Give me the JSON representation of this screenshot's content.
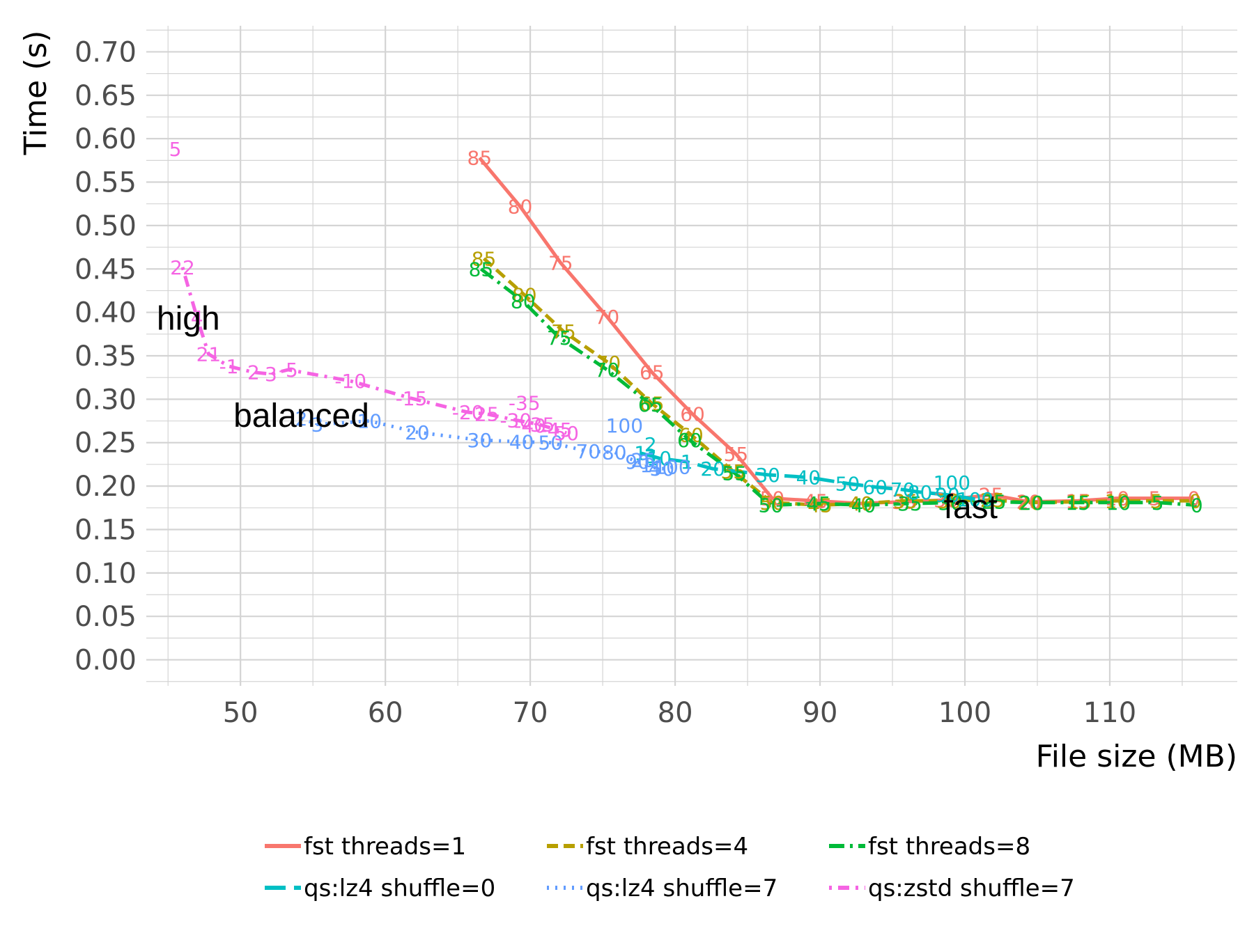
{
  "chart_data": {
    "type": "line",
    "title": "",
    "xlabel": "File size (MB)",
    "ylabel": "Time (s)",
    "xlim": [
      43.5,
      118.8
    ],
    "ylim": [
      -0.03,
      0.73
    ],
    "x_ticks": [
      50,
      60,
      70,
      80,
      90,
      100,
      110
    ],
    "x_tick_labels": [
      "50",
      "60",
      "70",
      "80",
      "90",
      "100",
      "110"
    ],
    "y_ticks": [
      0.0,
      0.05,
      0.1,
      0.15,
      0.2,
      0.25,
      0.3,
      0.35,
      0.4,
      0.45,
      0.5,
      0.55,
      0.6,
      0.65,
      0.7
    ],
    "y_tick_labels": [
      "0.00",
      "0.05",
      "0.10",
      "0.15",
      "0.20",
      "0.25",
      "0.30",
      "0.35",
      "0.40",
      "0.45",
      "0.50",
      "0.55",
      "0.60",
      "0.65",
      "0.70"
    ],
    "grid": true,
    "legend_position": "bottom",
    "series": [
      {
        "name": "fst threads=1",
        "color": "#F8766D",
        "dash": "solid",
        "points": [
          {
            "x": 66.5,
            "y": 0.578,
            "label": "85"
          },
          {
            "x": 69.3,
            "y": 0.522,
            "label": "80"
          },
          {
            "x": 72.1,
            "y": 0.457,
            "label": "75"
          },
          {
            "x": 75.3,
            "y": 0.395,
            "label": "70"
          },
          {
            "x": 78.4,
            "y": 0.331,
            "label": "65"
          },
          {
            "x": 81.2,
            "y": 0.283,
            "label": "60"
          },
          {
            "x": 84.2,
            "y": 0.237,
            "label": "55"
          },
          {
            "x": 86.7,
            "y": 0.186,
            "label": "50"
          },
          {
            "x": 89.7,
            "y": 0.183,
            "label": "45"
          },
          {
            "x": 92.8,
            "y": 0.18,
            "label": "40"
          },
          {
            "x": 95.8,
            "y": 0.182,
            "label": "35"
          },
          {
            "x": 98.7,
            "y": 0.184,
            "label": "30"
          },
          {
            "x": 101.8,
            "y": 0.19,
            "label": "25"
          },
          {
            "x": 104.4,
            "y": 0.182,
            "label": "20"
          },
          {
            "x": 107.8,
            "y": 0.183,
            "label": "15"
          },
          {
            "x": 110.5,
            "y": 0.186,
            "label": "10"
          },
          {
            "x": 113.1,
            "y": 0.186,
            "label": "5"
          },
          {
            "x": 115.8,
            "y": 0.186,
            "label": "0"
          }
        ]
      },
      {
        "name": "fst threads=4",
        "color": "#B79F00",
        "dash": "dashed",
        "points": [
          {
            "x": 66.8,
            "y": 0.462,
            "label": "85"
          },
          {
            "x": 69.6,
            "y": 0.42,
            "label": "80"
          },
          {
            "x": 72.3,
            "y": 0.378,
            "label": "75"
          },
          {
            "x": 75.4,
            "y": 0.342,
            "label": "70"
          },
          {
            "x": 78.4,
            "y": 0.295,
            "label": "65"
          },
          {
            "x": 81.1,
            "y": 0.259,
            "label": "60"
          },
          {
            "x": 84.0,
            "y": 0.217,
            "label": "55"
          },
          {
            "x": 86.7,
            "y": 0.181,
            "label": "50"
          },
          {
            "x": 90.0,
            "y": 0.178,
            "label": "45"
          },
          {
            "x": 92.8,
            "y": 0.18,
            "label": "40"
          },
          {
            "x": 95.9,
            "y": 0.183,
            "label": "35"
          },
          {
            "x": 98.9,
            "y": 0.183,
            "label": "30"
          },
          {
            "x": 101.9,
            "y": 0.184,
            "label": "25"
          },
          {
            "x": 104.5,
            "y": 0.181,
            "label": "20"
          },
          {
            "x": 107.9,
            "y": 0.182,
            "label": "15"
          },
          {
            "x": 110.5,
            "y": 0.183,
            "label": "10"
          },
          {
            "x": 113.2,
            "y": 0.183,
            "label": "5"
          },
          {
            "x": 115.9,
            "y": 0.183,
            "label": "0"
          }
        ]
      },
      {
        "name": "fst threads=8",
        "color": "#00BA38",
        "dash": "dashdot",
        "points": [
          {
            "x": 66.6,
            "y": 0.45,
            "label": "85"
          },
          {
            "x": 69.5,
            "y": 0.413,
            "label": "80"
          },
          {
            "x": 72.0,
            "y": 0.371,
            "label": "75"
          },
          {
            "x": 75.3,
            "y": 0.334,
            "label": "70"
          },
          {
            "x": 78.3,
            "y": 0.294,
            "label": "65"
          },
          {
            "x": 81.0,
            "y": 0.253,
            "label": "60"
          },
          {
            "x": 84.1,
            "y": 0.215,
            "label": "55"
          },
          {
            "x": 86.6,
            "y": 0.178,
            "label": "50"
          },
          {
            "x": 89.9,
            "y": 0.18,
            "label": "45"
          },
          {
            "x": 93.0,
            "y": 0.178,
            "label": "40"
          },
          {
            "x": 96.2,
            "y": 0.18,
            "label": "35"
          },
          {
            "x": 99.0,
            "y": 0.181,
            "label": "30"
          },
          {
            "x": 102.0,
            "y": 0.182,
            "label": "25"
          },
          {
            "x": 104.6,
            "y": 0.181,
            "label": "20"
          },
          {
            "x": 107.8,
            "y": 0.181,
            "label": "15"
          },
          {
            "x": 110.6,
            "y": 0.181,
            "label": "10"
          },
          {
            "x": 113.3,
            "y": 0.181,
            "label": "5"
          },
          {
            "x": 116.0,
            "y": 0.178,
            "label": "0"
          }
        ]
      },
      {
        "name": "qs:lz4 shuffle=0",
        "color": "#00BFC4",
        "dash": "longdash",
        "points": [
          {
            "x": 77.6,
            "y": 0.238,
            "label": "1"
          },
          {
            "x": 78.3,
            "y": 0.235,
            "label": "3"
          },
          {
            "x": 78.9,
            "y": 0.232,
            "label": "10"
          },
          {
            "x": 80.8,
            "y": 0.228,
            "label": "1"
          },
          {
            "x": 82.6,
            "y": 0.22,
            "label": "20"
          },
          {
            "x": 86.4,
            "y": 0.213,
            "label": "30"
          },
          {
            "x": 89.2,
            "y": 0.21,
            "label": "40"
          },
          {
            "x": 91.9,
            "y": 0.203,
            "label": "50"
          },
          {
            "x": 93.8,
            "y": 0.199,
            "label": "60"
          },
          {
            "x": 95.7,
            "y": 0.196,
            "label": "70"
          },
          {
            "x": 96.9,
            "y": 0.193,
            "label": "80"
          },
          {
            "x": 98.8,
            "y": 0.19,
            "label": "90"
          },
          {
            "x": 100.7,
            "y": 0.185,
            "label": "100"
          }
        ]
      },
      {
        "name": "qs:lz4 shuffle=7",
        "color": "#619CFF",
        "dash": "dotted",
        "points": [
          {
            "x": 54.2,
            "y": 0.278,
            "label": "2"
          },
          {
            "x": 55.3,
            "y": 0.271,
            "label": "3"
          },
          {
            "x": 58.9,
            "y": 0.275,
            "label": "10"
          },
          {
            "x": 62.2,
            "y": 0.262,
            "label": "20"
          },
          {
            "x": 66.5,
            "y": 0.253,
            "label": "30"
          },
          {
            "x": 69.4,
            "y": 0.251,
            "label": "40"
          },
          {
            "x": 71.4,
            "y": 0.25,
            "label": "50"
          },
          {
            "x": 74.0,
            "y": 0.24,
            "label": "70"
          },
          {
            "x": 75.8,
            "y": 0.239,
            "label": "80"
          },
          {
            "x": 77.4,
            "y": 0.228,
            "label": "90"
          },
          {
            "x": 78.0,
            "y": 0.224,
            "label": "1"
          },
          {
            "x": 78.6,
            "y": 0.221,
            "label": "4"
          },
          {
            "x": 79.1,
            "y": 0.22,
            "label": "50"
          },
          {
            "x": 79.8,
            "y": 0.222,
            "label": "100"
          }
        ]
      },
      {
        "name": "qs:zstd shuffle=7",
        "color": "#F564E3",
        "dash": "dotdash",
        "points": [
          {
            "x": 46.0,
            "y": 0.452,
            "label": "22"
          },
          {
            "x": 47.0,
            "y": 0.394,
            "label": "4"
          },
          {
            "x": 47.8,
            "y": 0.352,
            "label": "21"
          },
          {
            "x": 49.2,
            "y": 0.338,
            "label": "-1"
          },
          {
            "x": 50.9,
            "y": 0.331,
            "label": "2"
          },
          {
            "x": 52.1,
            "y": 0.329,
            "label": "3"
          },
          {
            "x": 53.3,
            "y": 0.334,
            "label": "-5"
          },
          {
            "x": 57.6,
            "y": 0.321,
            "label": "-10"
          },
          {
            "x": 61.8,
            "y": 0.301,
            "label": "-15"
          },
          {
            "x": 65.7,
            "y": 0.285,
            "label": "-20"
          },
          {
            "x": 67.0,
            "y": 0.283,
            "label": "25"
          },
          {
            "x": 69.0,
            "y": 0.276,
            "label": "-30"
          },
          {
            "x": 70.6,
            "y": 0.271,
            "label": "-35"
          },
          {
            "x": 71.8,
            "y": 0.265,
            "label": "-45"
          },
          {
            "x": 72.5,
            "y": 0.261,
            "label": "50"
          }
        ]
      }
    ],
    "extra_labels": [
      {
        "text": "5",
        "x": 45.5,
        "y": 0.588,
        "color": "#F564E3"
      },
      {
        "text": "-35",
        "x": 69.6,
        "y": 0.296,
        "color": "#F564E3"
      },
      {
        "text": "-40",
        "x": 70.0,
        "y": 0.27,
        "color": "#F564E3"
      },
      {
        "text": "100",
        "x": 76.5,
        "y": 0.27,
        "color": "#619CFF"
      },
      {
        "text": "100",
        "x": 99.1,
        "y": 0.204,
        "color": "#00BFC4"
      },
      {
        "text": "2",
        "x": 78.3,
        "y": 0.248,
        "color": "#00BFC4"
      },
      {
        "text": "25",
        "x": 77.8,
        "y": 0.23,
        "color": "#619CFF"
      }
    ],
    "annotations": [
      {
        "text": "high",
        "x": 46.4,
        "y": 0.393
      },
      {
        "text": "balanced",
        "x": 54.2,
        "y": 0.281
      },
      {
        "text": "fast",
        "x": 100.4,
        "y": 0.176
      }
    ]
  },
  "legend": {
    "items": [
      {
        "label": "fst threads=1",
        "color": "#F8766D",
        "dash": "solid"
      },
      {
        "label": "fst threads=4",
        "color": "#B79F00",
        "dash": "dashed"
      },
      {
        "label": "fst threads=8",
        "color": "#00BA38",
        "dash": "dashdot"
      },
      {
        "label": "qs:lz4 shuffle=0",
        "color": "#00BFC4",
        "dash": "longdash"
      },
      {
        "label": "qs:lz4 shuffle=7",
        "color": "#619CFF",
        "dash": "dotted"
      },
      {
        "label": "qs:zstd shuffle=7",
        "color": "#F564E3",
        "dash": "dotdash"
      }
    ]
  }
}
